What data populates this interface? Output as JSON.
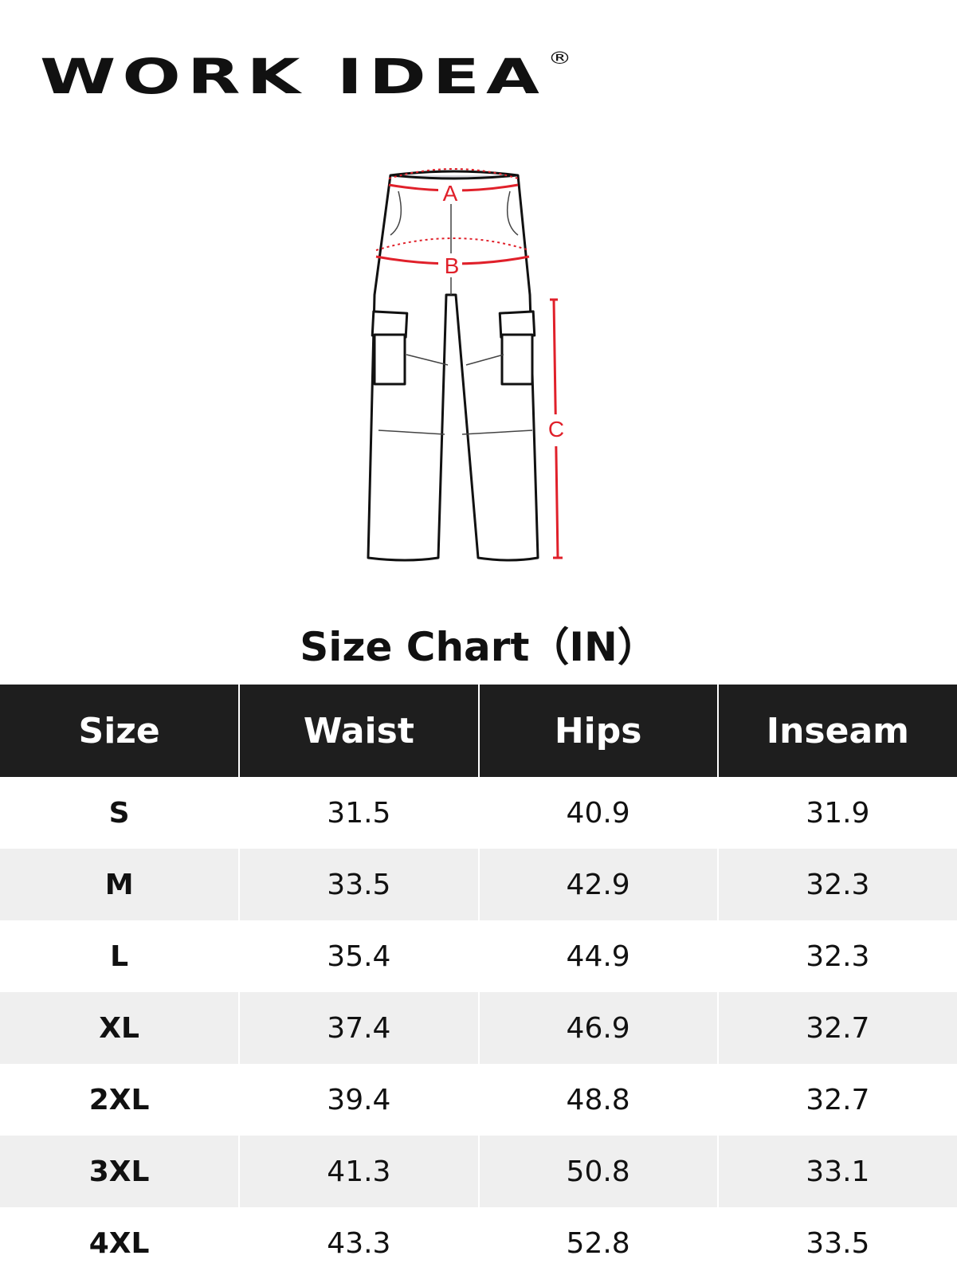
{
  "brand": {
    "name": "WORK IDEA",
    "mark": "®"
  },
  "diagram": {
    "labels": [
      "A",
      "B",
      "C"
    ],
    "accent": "#e0202a"
  },
  "title": "Size Chart（IN）",
  "table": {
    "headers": [
      "Size",
      "Waist",
      "Hips",
      "Inseam"
    ],
    "rows": [
      [
        "S",
        "31.5",
        "40.9",
        "31.9"
      ],
      [
        "M",
        "33.5",
        "42.9",
        "32.3"
      ],
      [
        "L",
        "35.4",
        "44.9",
        "32.3"
      ],
      [
        "XL",
        "37.4",
        "46.9",
        "32.7"
      ],
      [
        "2XL",
        "39.4",
        "48.8",
        "32.7"
      ],
      [
        "3XL",
        "41.3",
        "50.8",
        "33.1"
      ],
      [
        "4XL",
        "43.3",
        "52.8",
        "33.5"
      ]
    ]
  }
}
